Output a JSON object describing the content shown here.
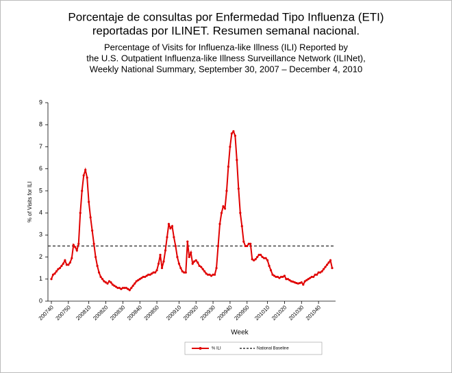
{
  "chart_data": {
    "type": "line",
    "title": "Porcentaje de consultas por Enfermedad Tipo Influenza (ETI) reportadas por ILINET. Resumen semanal nacional.",
    "subtitle": [
      "Percentage of Visits for Influenza-like Illness (ILI) Reported by",
      "the U.S. Outpatient Influenza-like Illness Surveillance Network (ILINet),",
      "Weekly National Summary, September 30, 2007 – December 4, 2010"
    ],
    "x_label": "Week",
    "y_label": "% of Visits for ILI",
    "categories": [
      "200740",
      null,
      null,
      null,
      null,
      null,
      null,
      null,
      null,
      null,
      "200750",
      null,
      null,
      null,
      null,
      null,
      null,
      null,
      null,
      null,
      null,
      null,
      "200810",
      null,
      null,
      null,
      null,
      null,
      null,
      null,
      null,
      null,
      "200820",
      null,
      null,
      null,
      null,
      null,
      null,
      null,
      null,
      null,
      "200830",
      null,
      null,
      null,
      null,
      null,
      null,
      null,
      null,
      null,
      "200840",
      null,
      null,
      null,
      null,
      null,
      null,
      null,
      null,
      null,
      "200850",
      null,
      null,
      null,
      null,
      null,
      null,
      null,
      null,
      null,
      null,
      null,
      null,
      "200910",
      null,
      null,
      null,
      null,
      null,
      null,
      null,
      null,
      null,
      "200920",
      null,
      null,
      null,
      null,
      null,
      null,
      null,
      null,
      null,
      "200930",
      null,
      null,
      null,
      null,
      null,
      null,
      null,
      null,
      null,
      "200940",
      null,
      null,
      null,
      null,
      null,
      null,
      null,
      null,
      null,
      "200950",
      null,
      null,
      null,
      null,
      null,
      null,
      null,
      null,
      null,
      null,
      null,
      "201010",
      null,
      null,
      null,
      null,
      null,
      null,
      null,
      null,
      null,
      "201020",
      null,
      null,
      null,
      null,
      null,
      null,
      null,
      null,
      null,
      "201030",
      null,
      null,
      null,
      null,
      null,
      null,
      null,
      null,
      null,
      "201040",
      null,
      null,
      null,
      null,
      null,
      null,
      null,
      null
    ],
    "series": [
      {
        "name": "% ILI",
        "color": "#e00000",
        "values": [
          1.0,
          1.2,
          1.25,
          1.35,
          1.45,
          1.5,
          1.6,
          1.7,
          1.85,
          1.65,
          1.65,
          1.75,
          1.95,
          2.55,
          2.45,
          2.3,
          2.6,
          4.0,
          5.0,
          5.7,
          5.95,
          5.6,
          4.5,
          3.8,
          3.2,
          2.6,
          2.0,
          1.6,
          1.3,
          1.1,
          1.0,
          0.9,
          0.85,
          0.8,
          0.9,
          0.85,
          0.75,
          0.7,
          0.65,
          0.6,
          0.6,
          0.55,
          0.6,
          0.6,
          0.6,
          0.55,
          0.5,
          0.6,
          0.7,
          0.8,
          0.9,
          0.95,
          1.0,
          1.05,
          1.1,
          1.1,
          1.15,
          1.2,
          1.2,
          1.25,
          1.3,
          1.3,
          1.4,
          1.7,
          2.1,
          1.5,
          1.8,
          2.3,
          2.9,
          3.5,
          3.3,
          3.4,
          2.9,
          2.5,
          2.0,
          1.7,
          1.5,
          1.35,
          1.3,
          1.3,
          2.7,
          2.0,
          2.2,
          1.7,
          1.8,
          1.85,
          1.75,
          1.6,
          1.55,
          1.45,
          1.35,
          1.25,
          1.2,
          1.2,
          1.15,
          1.2,
          1.2,
          1.5,
          2.5,
          3.5,
          4.0,
          4.3,
          4.2,
          5.0,
          6.1,
          7.0,
          7.6,
          7.7,
          7.5,
          6.4,
          5.1,
          4.0,
          3.4,
          2.7,
          2.5,
          2.5,
          2.6,
          2.6,
          1.9,
          1.85,
          1.9,
          2.0,
          2.1,
          2.1,
          2.0,
          1.95,
          1.95,
          1.85,
          1.6,
          1.4,
          1.2,
          1.15,
          1.1,
          1.1,
          1.05,
          1.1,
          1.1,
          1.15,
          1.0,
          1.0,
          0.95,
          0.9,
          0.88,
          0.85,
          0.82,
          0.8,
          0.82,
          0.85,
          0.75,
          0.9,
          0.95,
          1.0,
          1.05,
          1.1,
          1.1,
          1.2,
          1.2,
          1.3,
          1.3,
          1.35,
          1.45,
          1.55,
          1.65,
          1.75,
          1.85,
          1.5
        ]
      }
    ],
    "baseline": {
      "name": "National Baseline",
      "value": 2.5,
      "color": "#333333"
    },
    "ylim": [
      0,
      9
    ],
    "yticks": [
      0,
      1,
      2,
      3,
      4,
      5,
      6,
      7,
      8,
      9
    ]
  }
}
